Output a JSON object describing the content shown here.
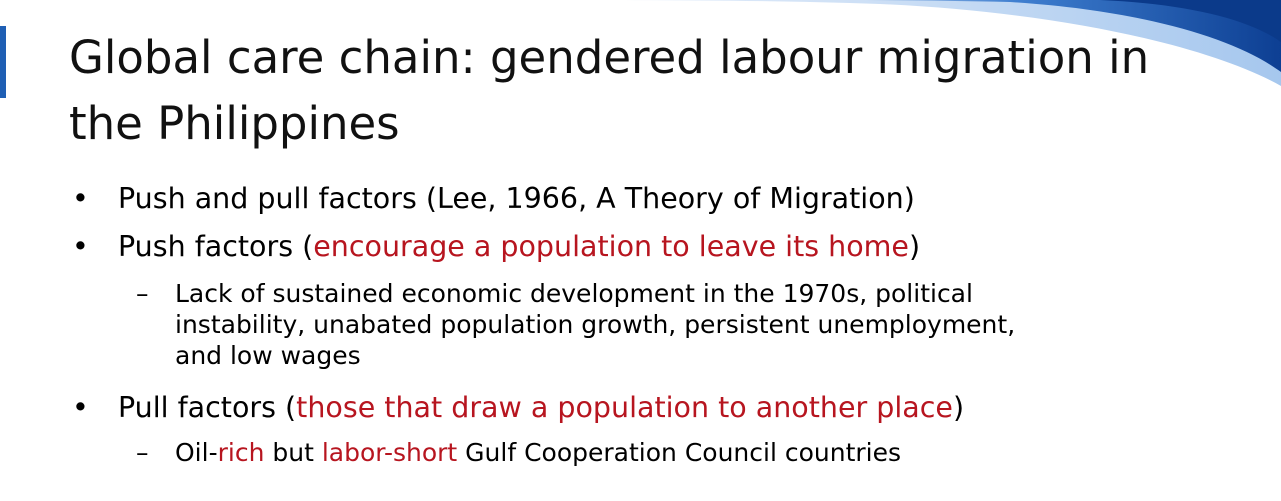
{
  "slide": {
    "title": "Global care chain: gendered labour migration in the Philippines",
    "bullet_marker": "•",
    "sub_marker": "–",
    "colors": {
      "emphasis": "#b7151f",
      "swoosh": "#1f5fb4",
      "text": "#111111"
    },
    "items": [
      {
        "level": 1,
        "parts": [
          "Push and pull factors (Lee, 1966, A Theory of Migration)"
        ]
      },
      {
        "level": 1,
        "parts": [
          "Push factors (",
          "encourage a population to leave its home",
          ")"
        ]
      },
      {
        "level": 2,
        "lines": [
          "Lack of sustained economic development in the 1970s, political",
          "instability, unabated population growth, persistent unemployment,",
          "and low wages"
        ]
      },
      {
        "level": 1,
        "parts": [
          "Pull factors (",
          "those that draw a population to another place",
          ")"
        ]
      },
      {
        "level": 2,
        "parts": [
          "Oil-",
          "rich",
          " but ",
          "labor-short",
          " Gulf Cooperation Council countries"
        ]
      }
    ]
  }
}
